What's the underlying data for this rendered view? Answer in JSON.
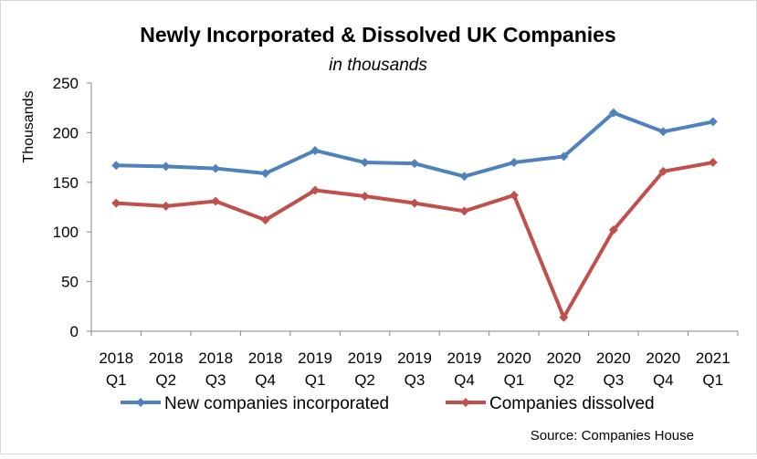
{
  "chart_data": {
    "type": "line",
    "title": "Newly Incorporated & Dissolved UK Companies",
    "subtitle": "in thousands",
    "ylabel": "Thousands",
    "xlabel": "",
    "ylim": [
      0,
      250
    ],
    "yticks": [
      0,
      50,
      100,
      150,
      200,
      250
    ],
    "grid": false,
    "legend": "bottom",
    "categories": [
      [
        "2018",
        "Q1"
      ],
      [
        "2018",
        "Q2"
      ],
      [
        "2018",
        "Q3"
      ],
      [
        "2018",
        "Q4"
      ],
      [
        "2019",
        "Q1"
      ],
      [
        "2019",
        "Q2"
      ],
      [
        "2019",
        "Q3"
      ],
      [
        "2019",
        "Q4"
      ],
      [
        "2020",
        "Q1"
      ],
      [
        "2020",
        "Q2"
      ],
      [
        "2020",
        "Q3"
      ],
      [
        "2020",
        "Q4"
      ],
      [
        "2021",
        "Q1"
      ]
    ],
    "series": [
      {
        "name": "New companies incorporated",
        "color": "#4F81BD",
        "values": [
          167,
          166,
          164,
          159,
          182,
          170,
          169,
          156,
          170,
          176,
          220,
          201,
          211
        ]
      },
      {
        "name": "Companies dissolved",
        "color": "#C0504D",
        "values": [
          129,
          126,
          131,
          112,
          142,
          136,
          129,
          121,
          137,
          14,
          102,
          161,
          170
        ]
      }
    ],
    "source": "Source: Companies House"
  }
}
